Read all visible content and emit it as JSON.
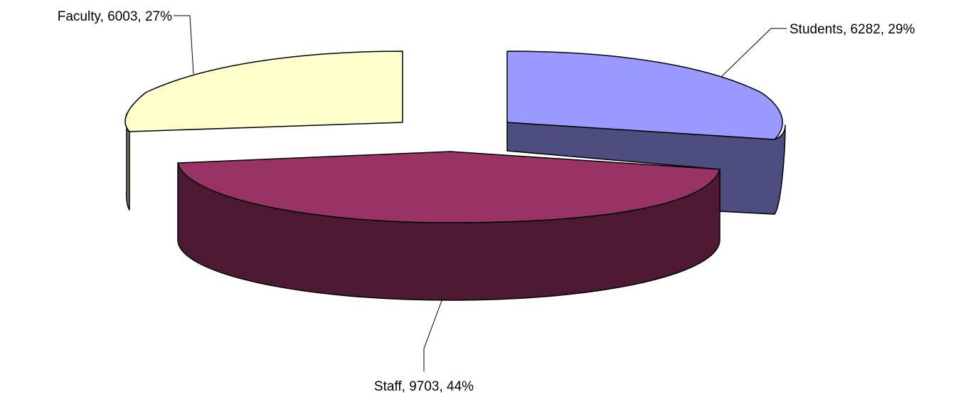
{
  "chart_data": {
    "type": "pie",
    "exploded": true,
    "three_d": true,
    "slices": [
      {
        "category": "Students",
        "value": 6282,
        "percent": 29,
        "label": "Students, 6282, 29%",
        "color": "#9999FF",
        "side_color": "#4D4D80"
      },
      {
        "category": "Staff",
        "value": 9703,
        "percent": 44,
        "label": "Staff, 9703, 44%",
        "color": "#993366",
        "side_color": "#4D1933"
      },
      {
        "category": "Faculty",
        "value": 6003,
        "percent": 27,
        "label": "Faculty, 6003, 27%",
        "color": "#FFFFCC",
        "side_color": "#808066"
      }
    ]
  }
}
